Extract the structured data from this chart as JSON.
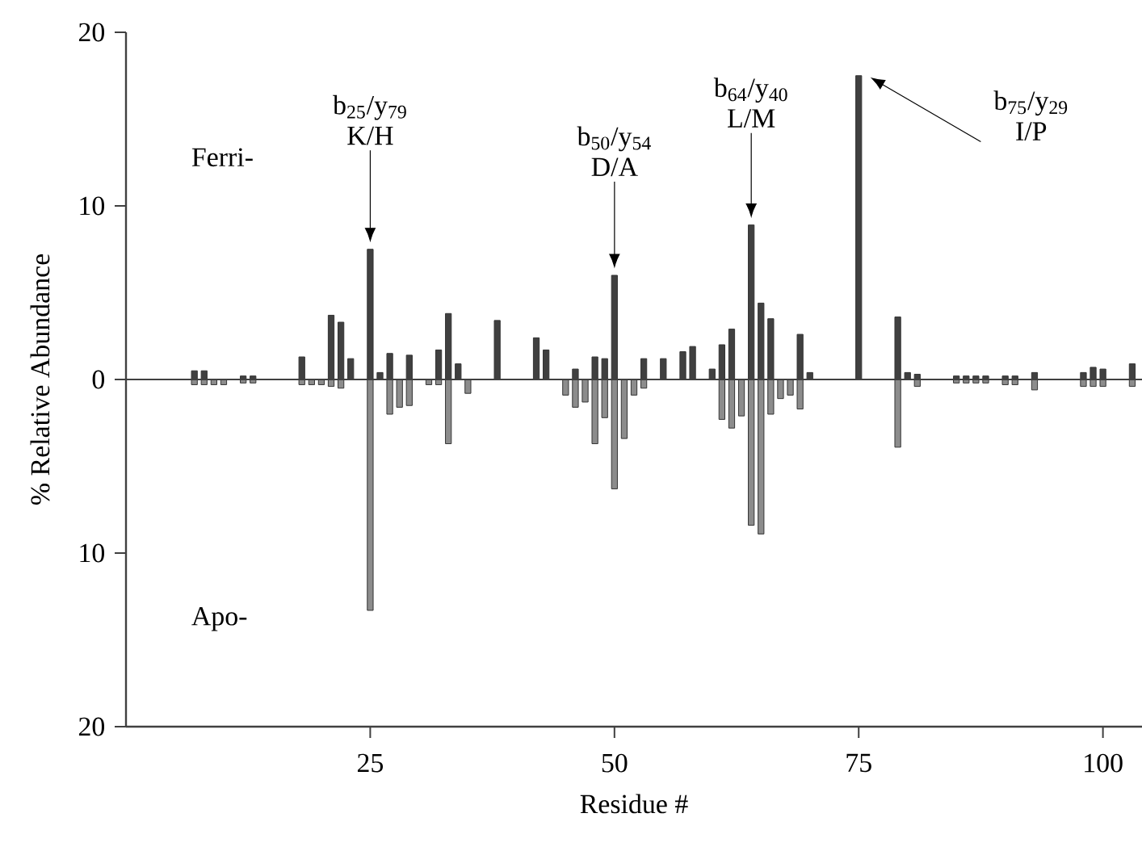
{
  "chart_data": {
    "type": "bar",
    "xlabel": "Residue #",
    "ylabel": "% Relative Abundance",
    "xlim": [
      0,
      104
    ],
    "xticks": [
      25,
      50,
      75,
      100
    ],
    "ylim": [
      -20,
      20
    ],
    "yticks": [
      {
        "value": -20,
        "label": "20"
      },
      {
        "value": -10,
        "label": "10"
      },
      0,
      10,
      20
    ],
    "series": [
      {
        "color": "#404040",
        "x": [
          7,
          8,
          12,
          13,
          18,
          21,
          22,
          23,
          25,
          26,
          27,
          29,
          32,
          33,
          34,
          38,
          42,
          43,
          46,
          48,
          49,
          50,
          53,
          55,
          57,
          58,
          60,
          61,
          62,
          64,
          65,
          66,
          69,
          70,
          75,
          79,
          80,
          81,
          85,
          86,
          87,
          88,
          90,
          91,
          93,
          98,
          99,
          100,
          103
        ],
        "values": [
          0.5,
          0.5,
          0.2,
          0.2,
          1.3,
          3.7,
          3.3,
          1.2,
          7.5,
          0.4,
          1.5,
          1.4,
          1.7,
          3.8,
          0.9,
          3.4,
          2.4,
          1.7,
          0.6,
          1.3,
          1.2,
          6.0,
          1.2,
          1.2,
          1.6,
          1.9,
          0.6,
          2.0,
          2.9,
          8.9,
          4.4,
          3.5,
          2.6,
          0.4,
          17.5,
          3.6,
          0.4,
          0.3,
          0.2,
          0.2,
          0.2,
          0.2,
          0.2,
          0.2,
          0.4,
          0.4,
          0.7,
          0.6,
          0.9
        ]
      },
      {
        "color": "#8c8c8c",
        "x": [
          7,
          8,
          9,
          10,
          12,
          13,
          18,
          19,
          20,
          21,
          22,
          25,
          27,
          28,
          29,
          31,
          32,
          33,
          35,
          45,
          46,
          47,
          48,
          49,
          50,
          51,
          52,
          53,
          61,
          62,
          63,
          64,
          65,
          66,
          67,
          68,
          69,
          79,
          81,
          85,
          86,
          87,
          88,
          90,
          91,
          93,
          98,
          99,
          100,
          103
        ],
        "values": [
          -0.3,
          -0.3,
          -0.3,
          -0.3,
          -0.2,
          -0.2,
          -0.3,
          -0.3,
          -0.3,
          -0.4,
          -0.5,
          -13.3,
          -2.0,
          -1.6,
          -1.5,
          -0.3,
          -0.3,
          -3.7,
          -0.8,
          -0.9,
          -1.6,
          -1.3,
          -3.7,
          -2.2,
          -6.3,
          -3.4,
          -0.9,
          -0.5,
          -2.3,
          -2.8,
          -2.1,
          -8.4,
          -8.9,
          -2.0,
          -1.1,
          -0.9,
          -1.7,
          -3.9,
          -0.4,
          -0.2,
          -0.2,
          -0.2,
          -0.2,
          -0.3,
          -0.3,
          -0.6,
          -0.4,
          -0.4,
          -0.4,
          -0.4
        ]
      }
    ],
    "annotations": [
      "Ferri-",
      "Apo-",
      "b$_{25}$/y$_{79}$ K/H",
      "b$_{50}$/y$_{54}$ D/A",
      "b$_{64}$/y$_{40}$ L/M",
      "b$_{75}$/y$_{29}$ I/P"
    ]
  }
}
